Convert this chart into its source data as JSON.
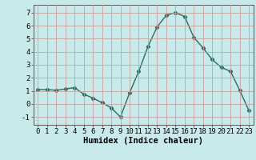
{
  "x": [
    0,
    1,
    2,
    3,
    4,
    5,
    6,
    7,
    8,
    9,
    10,
    11,
    12,
    13,
    14,
    15,
    16,
    17,
    18,
    19,
    20,
    21,
    22,
    23
  ],
  "y": [
    1.1,
    1.1,
    1.05,
    1.15,
    1.25,
    0.75,
    0.45,
    0.1,
    -0.3,
    -1.0,
    0.85,
    2.5,
    4.4,
    5.9,
    6.8,
    7.0,
    6.7,
    5.1,
    4.3,
    3.4,
    2.8,
    2.5,
    1.05,
    -0.5
  ],
  "line_color": "#2a6e62",
  "marker": "D",
  "marker_size": 2.2,
  "bg_color": "#c8eaea",
  "grid_color": "#c8a0a0",
  "xlabel": "Humidex (Indice chaleur)",
  "xlim": [
    -0.5,
    23.5
  ],
  "ylim": [
    -1.6,
    7.6
  ],
  "yticks": [
    -1,
    0,
    1,
    2,
    3,
    4,
    5,
    6,
    7
  ],
  "xticks": [
    0,
    1,
    2,
    3,
    4,
    5,
    6,
    7,
    8,
    9,
    10,
    11,
    12,
    13,
    14,
    15,
    16,
    17,
    18,
    19,
    20,
    21,
    22,
    23
  ],
  "xlabel_fontsize": 7.5,
  "tick_fontsize": 6.5,
  "linewidth": 1.0
}
